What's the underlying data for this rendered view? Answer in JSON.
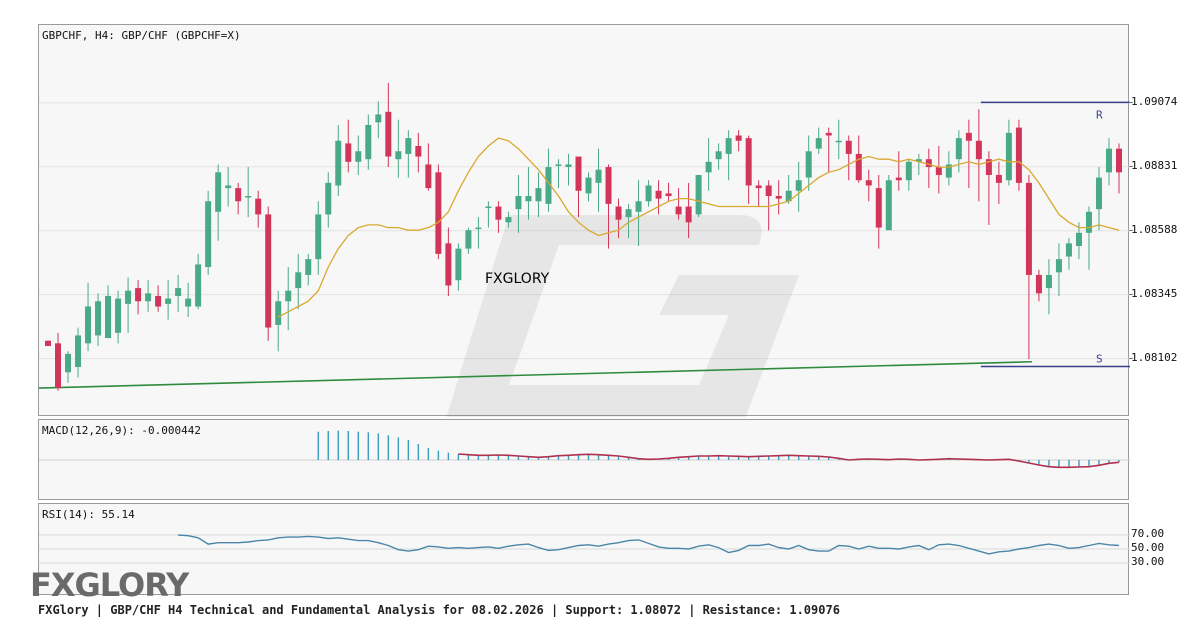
{
  "main": {
    "title": "GBPCHF, H4: GBP/CHF (GBPCHF=X)",
    "watermark_text": "FXGLORY",
    "resistance_label": "R",
    "support_label": "S"
  },
  "macd": {
    "title": "MACD(12,26,9): -0.000442"
  },
  "rsi": {
    "title": "RSI(14): 55.14"
  },
  "logo_text": "FXGLORY",
  "footer_text": "FXGlory | GBP/CHF H4 Technical and Fundamental Analysis for 08.02.2026 | Support: 1.08072 | Resistance: 1.09076",
  "colors": {
    "bull": "#4aa987",
    "bear": "#d2355a",
    "ma": "#d9a830",
    "trend": "#2e8b3e",
    "levels": "#3a3f8a",
    "macd_hist": "#3a9cbf",
    "macd_signal": "#b0304f",
    "rsi_line": "#4a86a8"
  },
  "chart_data": {
    "type": "candlestick",
    "symbol": "GBPCHF",
    "timeframe": "H4",
    "ylim": [
      1.0788,
      1.0937
    ],
    "y_ticks": [
      "1.09074",
      "1.08831",
      "1.08588",
      "1.08345",
      "1.08102"
    ],
    "resistance": 1.09076,
    "support": 1.08072,
    "candles": [
      [
        1.0817,
        1.0815,
        1.0815,
        1.0817
      ],
      [
        1.0816,
        1.0799,
        1.082,
        1.0798
      ],
      [
        1.0805,
        1.0812,
        1.0813,
        1.0801
      ],
      [
        1.0807,
        1.0819,
        1.0822,
        1.0803
      ],
      [
        1.0816,
        1.083,
        1.0839,
        1.0813
      ],
      [
        1.0819,
        1.0832,
        1.0835,
        1.0815
      ],
      [
        1.0818,
        1.0834,
        1.0838,
        1.0818
      ],
      [
        1.082,
        1.0833,
        1.0836,
        1.0816
      ],
      [
        1.0831,
        1.0836,
        1.0841,
        1.082
      ],
      [
        1.0837,
        1.0832,
        1.084,
        1.0827
      ],
      [
        1.0832,
        1.0835,
        1.084,
        1.0828
      ],
      [
        1.0834,
        1.083,
        1.0838,
        1.0828
      ],
      [
        1.0831,
        1.0833,
        1.084,
        1.0825
      ],
      [
        1.0834,
        1.0837,
        1.0842,
        1.0828
      ],
      [
        1.083,
        1.0833,
        1.0839,
        1.0826
      ],
      [
        1.083,
        1.0846,
        1.085,
        1.0829
      ],
      [
        1.0845,
        1.087,
        1.0874,
        1.0842
      ],
      [
        1.0866,
        1.0881,
        1.0884,
        1.0855
      ],
      [
        1.0875,
        1.0876,
        1.0883,
        1.0868
      ],
      [
        1.0875,
        1.087,
        1.0877,
        1.0865
      ],
      [
        1.0872,
        1.0872,
        1.0883,
        1.0864
      ],
      [
        1.0871,
        1.0865,
        1.0874,
        1.086
      ],
      [
        1.0865,
        1.0822,
        1.0868,
        1.0817
      ],
      [
        1.0823,
        1.0832,
        1.0836,
        1.0813
      ],
      [
        1.0832,
        1.0836,
        1.0845,
        1.0821
      ],
      [
        1.0837,
        1.0843,
        1.085,
        1.0829
      ],
      [
        1.0842,
        1.0848,
        1.085,
        1.0838
      ],
      [
        1.0848,
        1.0865,
        1.087,
        1.0842
      ],
      [
        1.0865,
        1.0877,
        1.0881,
        1.086
      ],
      [
        1.0876,
        1.0893,
        1.0899,
        1.0872
      ],
      [
        1.0892,
        1.0885,
        1.0901,
        1.0881
      ],
      [
        1.0885,
        1.0889,
        1.0895,
        1.088
      ],
      [
        1.0886,
        1.0899,
        1.0903,
        1.0882
      ],
      [
        1.09,
        1.0903,
        1.0908,
        1.0894
      ],
      [
        1.0904,
        1.0887,
        1.0915,
        1.0883
      ],
      [
        1.0886,
        1.0889,
        1.0901,
        1.0879
      ],
      [
        1.0888,
        1.0894,
        1.0897,
        1.0879
      ],
      [
        1.0891,
        1.0887,
        1.0896,
        1.0881
      ],
      [
        1.0884,
        1.0875,
        1.0892,
        1.0874
      ],
      [
        1.0881,
        1.085,
        1.0884,
        1.0848
      ],
      [
        1.0854,
        1.0838,
        1.086,
        1.0834
      ],
      [
        1.084,
        1.0852,
        1.0854,
        1.0836
      ],
      [
        1.0852,
        1.0859,
        1.086,
        1.085
      ],
      [
        1.086,
        1.086,
        1.0864,
        1.0852
      ],
      [
        1.0868,
        1.0868,
        1.087,
        1.086
      ],
      [
        1.0868,
        1.0863,
        1.087,
        1.0858
      ],
      [
        1.0862,
        1.0864,
        1.0866,
        1.086
      ],
      [
        1.0867,
        1.0872,
        1.088,
        1.0858
      ],
      [
        1.087,
        1.0872,
        1.0883,
        1.0863
      ],
      [
        1.087,
        1.0875,
        1.0881,
        1.0864
      ],
      [
        1.0869,
        1.0883,
        1.089,
        1.0866
      ],
      [
        1.0884,
        1.0884,
        1.0886,
        1.0875
      ],
      [
        1.0883,
        1.0884,
        1.0888,
        1.0876
      ],
      [
        1.0887,
        1.0874,
        1.0887,
        1.0864
      ],
      [
        1.0873,
        1.0879,
        1.0881,
        1.087
      ],
      [
        1.0877,
        1.0882,
        1.089,
        1.0866
      ],
      [
        1.0883,
        1.0869,
        1.0884,
        1.0852
      ],
      [
        1.0868,
        1.0863,
        1.0871,
        1.0856
      ],
      [
        1.0864,
        1.0867,
        1.0869,
        1.0856
      ],
      [
        1.0866,
        1.087,
        1.0878,
        1.0853
      ],
      [
        1.087,
        1.0876,
        1.0878,
        1.0868
      ],
      [
        1.0874,
        1.0871,
        1.0878,
        1.0865
      ],
      [
        1.0873,
        1.0872,
        1.0877,
        1.087
      ],
      [
        1.0868,
        1.0865,
        1.0875,
        1.0863
      ],
      [
        1.0868,
        1.0862,
        1.0877,
        1.0856
      ],
      [
        1.0865,
        1.088,
        1.088,
        1.0864
      ],
      [
        1.0881,
        1.0885,
        1.0894,
        1.0874
      ],
      [
        1.0886,
        1.0889,
        1.0892,
        1.0882
      ],
      [
        1.0888,
        1.0894,
        1.0897,
        1.0878
      ],
      [
        1.0895,
        1.0893,
        1.0897,
        1.0889
      ],
      [
        1.0894,
        1.0876,
        1.0895,
        1.0869
      ],
      [
        1.0876,
        1.0875,
        1.0878,
        1.0868
      ],
      [
        1.0876,
        1.0872,
        1.0878,
        1.0859
      ],
      [
        1.0872,
        1.0871,
        1.0878,
        1.0865
      ],
      [
        1.087,
        1.0874,
        1.088,
        1.0869
      ],
      [
        1.0874,
        1.0878,
        1.0885,
        1.0866
      ],
      [
        1.0879,
        1.0889,
        1.0895,
        1.0874
      ],
      [
        1.089,
        1.0894,
        1.0898,
        1.0888
      ],
      [
        1.0896,
        1.0895,
        1.0898,
        1.0881
      ],
      [
        1.0893,
        1.0893,
        1.0901,
        1.0886
      ],
      [
        1.0893,
        1.0888,
        1.0895,
        1.0878
      ],
      [
        1.0888,
        1.0878,
        1.0895,
        1.0877
      ],
      [
        1.0878,
        1.0876,
        1.0882,
        1.087
      ],
      [
        1.0875,
        1.086,
        1.088,
        1.0852
      ],
      [
        1.0859,
        1.0878,
        1.088,
        1.086
      ],
      [
        1.0879,
        1.0878,
        1.0889,
        1.0874
      ],
      [
        1.0878,
        1.0885,
        1.0886,
        1.0874
      ],
      [
        1.0885,
        1.0886,
        1.0888,
        1.088
      ],
      [
        1.0886,
        1.0883,
        1.089,
        1.0875
      ],
      [
        1.0883,
        1.088,
        1.0891,
        1.0873
      ],
      [
        1.0879,
        1.0884,
        1.0889,
        1.0876
      ],
      [
        1.0886,
        1.0894,
        1.0897,
        1.0881
      ],
      [
        1.0896,
        1.0893,
        1.0901,
        1.0875
      ],
      [
        1.0893,
        1.0886,
        1.0905,
        1.087
      ],
      [
        1.0886,
        1.088,
        1.0889,
        1.0861
      ],
      [
        1.088,
        1.0877,
        1.0885,
        1.0869
      ],
      [
        1.0878,
        1.0896,
        1.0901,
        1.0876
      ],
      [
        1.0898,
        1.0877,
        1.0901,
        1.0874
      ],
      [
        1.0877,
        1.0842,
        1.088,
        1.081
      ],
      [
        1.0842,
        1.0835,
        1.0844,
        1.0832
      ],
      [
        1.0837,
        1.0842,
        1.0848,
        1.0827
      ],
      [
        1.0843,
        1.0848,
        1.0854,
        1.0834
      ],
      [
        1.0849,
        1.0854,
        1.0856,
        1.0844
      ],
      [
        1.0853,
        1.0858,
        1.0862,
        1.0848
      ],
      [
        1.0858,
        1.0866,
        1.0868,
        1.0844
      ],
      [
        1.0867,
        1.0879,
        1.0883,
        1.0859
      ],
      [
        1.0881,
        1.089,
        1.0894,
        1.0876
      ],
      [
        1.089,
        1.0881,
        1.0892,
        1.0873
      ]
    ],
    "moving_average": [
      1.0826,
      1.0828,
      1.083,
      1.0832,
      1.0836,
      1.0845,
      1.0852,
      1.0857,
      1.086,
      1.0861,
      1.0861,
      1.086,
      1.086,
      1.0859,
      1.0859,
      1.086,
      1.0862,
      1.0866,
      1.0874,
      1.0881,
      1.0887,
      1.0891,
      1.0894,
      1.0893,
      1.089,
      1.0886,
      1.0882,
      1.0877,
      1.0872,
      1.0866,
      1.0862,
      1.0859,
      1.0857,
      1.0858,
      1.0859,
      1.0862,
      1.0864,
      1.0866,
      1.0868,
      1.087,
      1.0871,
      1.0871,
      1.087,
      1.0869,
      1.0868,
      1.0868,
      1.0868,
      1.0868,
      1.0868,
      1.0868,
      1.0869,
      1.087,
      1.0873,
      1.0876,
      1.0879,
      1.0881,
      1.0882,
      1.0884,
      1.0886,
      1.0887,
      1.0886,
      1.0886,
      1.0885,
      1.0886,
      1.0885,
      1.0884,
      1.0883,
      1.0883,
      1.0884,
      1.0885,
      1.0884,
      1.0885,
      1.0886,
      1.0885,
      1.0885,
      1.0882,
      1.0877,
      1.0871,
      1.0865,
      1.0862,
      1.086,
      1.086,
      1.0861,
      1.086,
      1.0859
    ],
    "trendline": [
      [
        0,
        1.0799
      ],
      [
        98,
        1.0809
      ]
    ],
    "macd": {
      "histogram": [
        0.00085,
        0.00087,
        0.00088,
        0.00087,
        0.00085,
        0.00083,
        0.0008,
        0.00074,
        0.00068,
        0.0006,
        0.00048,
        0.00036,
        0.00028,
        0.00022,
        0.00018,
        0.00016,
        0.00014,
        0.00014,
        0.00015,
        0.00014,
        0.00012,
        0.0001,
        8e-05,
        0.0001,
        0.00013,
        0.00014,
        0.00016,
        0.00017,
        0.00016,
        0.00014,
        0.00012,
        8e-05,
        4e-05,
        2e-05,
        3e-05,
        5e-05,
        8e-05,
        0.0001,
        0.00012,
        0.00012,
        0.00013,
        0.00012,
        0.00011,
        0.0001,
        0.00011,
        0.00012,
        0.00013,
        0.00014,
        0.00013,
        0.00012,
        0.00011,
        9e-05,
        5e-05,
        0.0,
        2e-05,
        3e-05,
        2e-05,
        1e-05,
        3e-05,
        2e-05,
        0.0,
        1e-05,
        2e-05,
        4e-05,
        3e-05,
        2e-05,
        1e-05,
        0.0,
        1e-05,
        2e-05,
        -3e-05,
        -9e-05,
        -0.00015,
        -0.0002,
        -0.00022,
        -0.00022,
        -0.00021,
        -0.0002,
        -0.00016,
        -0.0001,
        -7e-05
      ],
      "signal": [
        0.00018,
        0.00016,
        0.00014,
        0.00014,
        0.00015,
        0.00014,
        0.00012,
        0.0001,
        8e-05,
        0.0001,
        0.00013,
        0.00014,
        0.00016,
        0.00017,
        0.00016,
        0.00014,
        0.00012,
        8e-05,
        4e-05,
        2e-05,
        3e-05,
        5e-05,
        8e-05,
        0.0001,
        0.00012,
        0.00012,
        0.00013,
        0.00012,
        0.00011,
        0.0001,
        0.00011,
        0.00012,
        0.00013,
        0.00014,
        0.00013,
        0.00012,
        0.00011,
        9e-05,
        5e-05,
        0.0,
        2e-05,
        3e-05,
        2e-05,
        1e-05,
        3e-05,
        2e-05,
        0.0,
        1e-05,
        2e-05,
        4e-05,
        3e-05,
        2e-05,
        1e-05,
        0.0,
        1e-05,
        2e-05,
        -3e-05,
        -9e-05,
        -0.00015,
        -0.0002,
        -0.00022,
        -0.00022,
        -0.00021,
        -0.0002,
        -0.00016,
        -0.0001,
        -7e-05
      ]
    },
    "rsi": {
      "levels": [
        "70.00",
        "50.00",
        "30.00"
      ],
      "values": [
        70,
        69,
        66,
        57,
        59,
        59,
        59,
        60,
        62,
        63,
        66,
        67,
        67,
        68,
        67,
        65,
        66,
        64,
        62,
        62,
        59,
        55,
        49,
        47,
        49,
        54,
        53,
        51,
        52,
        51,
        52,
        53,
        51,
        54,
        56,
        57,
        52,
        48,
        49,
        52,
        55,
        56,
        54,
        57,
        59,
        62,
        63,
        58,
        53,
        51,
        51,
        50,
        54,
        56,
        52,
        45,
        48,
        55,
        55,
        57,
        52,
        50,
        55,
        49,
        47,
        47,
        55,
        54,
        50,
        54,
        51,
        51,
        50,
        53,
        55,
        49,
        56,
        57,
        55,
        51,
        47,
        43,
        46,
        47,
        50,
        52,
        55,
        57,
        55,
        51,
        52,
        55,
        58,
        56,
        55
      ]
    }
  }
}
